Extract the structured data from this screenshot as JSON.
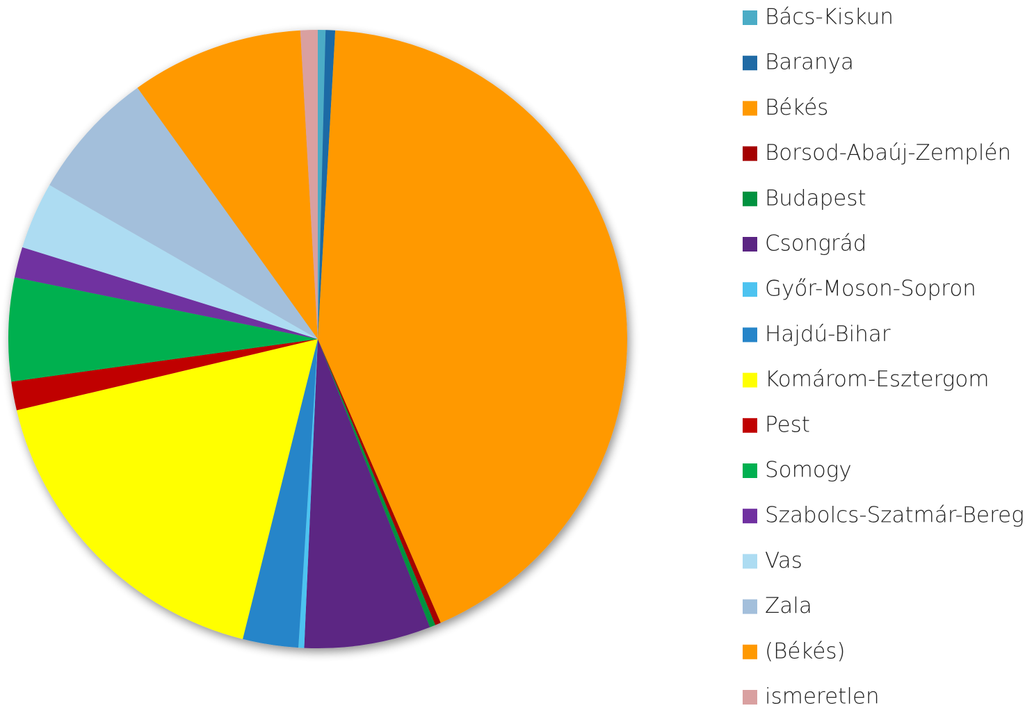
{
  "chart_data": {
    "type": "pie",
    "categories": [
      "Bács-Kiskun",
      "Baranya",
      "Békés",
      "Borsod-Abaúj-Zemplén",
      "Budapest",
      "Csongrád",
      "Győr-Moson-Sopron",
      "Hajdú-Bihar",
      "Komárom-Esztergom",
      "Pest",
      "Somogy",
      "Szabolcs-Szatmár-Bereg",
      "Vas",
      "Zala",
      "(Békés)",
      "ismeretlen"
    ],
    "values": [
      0.4,
      0.5,
      42.6,
      0.3,
      0.3,
      6.6,
      0.3,
      2.9,
      17.4,
      1.5,
      5.4,
      1.6,
      3.5,
      6.8,
      9.0,
      0.9
    ],
    "colors": [
      "#4BACC6",
      "#1F6AA5",
      "#FF9900",
      "#A50000",
      "#00923F",
      "#5B2583",
      "#4DC3F0",
      "#2685C9",
      "#FFFF00",
      "#C00000",
      "#00B050",
      "#7030A0",
      "#ADDCF2",
      "#A3BFDB",
      "#FF9900",
      "#D9A0A0"
    ],
    "legend": "right"
  }
}
